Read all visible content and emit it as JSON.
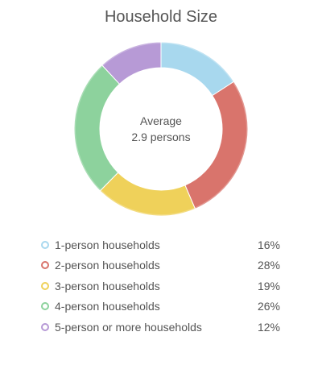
{
  "title": "Household Size",
  "center": {
    "line1": "Average",
    "line2": "2.9 persons"
  },
  "chart_data": {
    "type": "pie",
    "title": "Household Size",
    "donut": true,
    "categories": [
      "1-person households",
      "2-person households",
      "3-person households",
      "4-person households",
      "5-person or more households"
    ],
    "values": [
      16,
      28,
      19,
      26,
      12
    ],
    "value_labels": [
      "16%",
      "28%",
      "19%",
      "26%",
      "12%"
    ],
    "colors": [
      "#a8d8ee",
      "#d9746c",
      "#efd15a",
      "#8dd29d",
      "#b79ad6"
    ],
    "legend_position": "bottom"
  }
}
